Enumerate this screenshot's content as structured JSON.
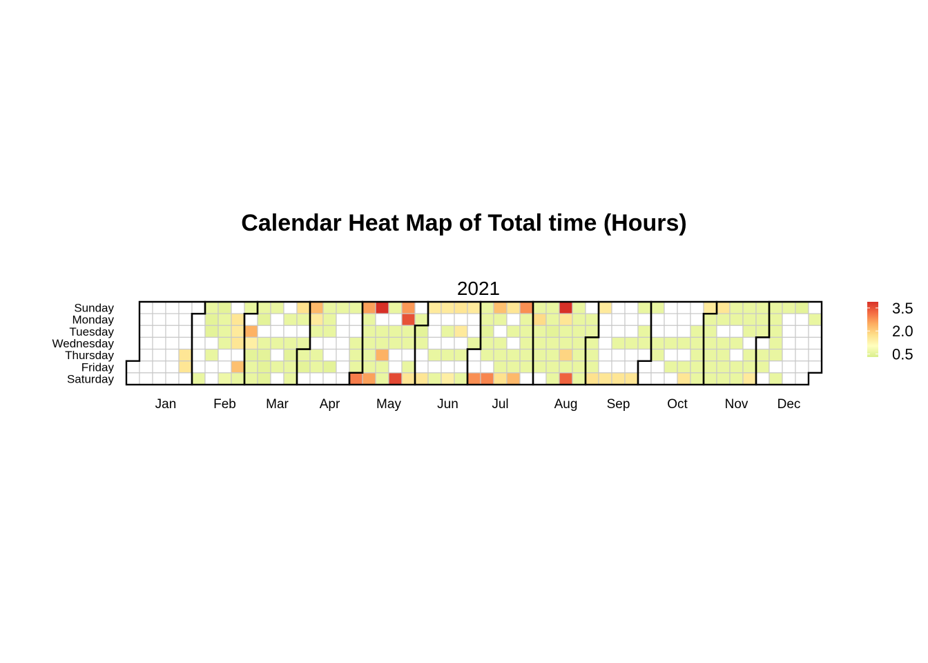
{
  "chart_data": {
    "type": "heatmap",
    "title": "Calendar Heat Map of Total time (Hours)",
    "panel_title": "2021",
    "year": 2021,
    "weekday_labels": [
      "Sunday",
      "Monday",
      "Tuesday",
      "Wednesday",
      "Thursday",
      "Friday",
      "Saturday"
    ],
    "month_labels": [
      "Jan",
      "Feb",
      "Mar",
      "Apr",
      "May",
      "Jun",
      "Jul",
      "Aug",
      "Sep",
      "Oct",
      "Nov",
      "Dec"
    ],
    "legend": {
      "ticks": [
        "3.5",
        "2.0",
        "0.5"
      ],
      "min": 0.3,
      "max": 3.9,
      "position": "right"
    },
    "color_scale": {
      "empty": "#ffffff",
      "stops": [
        "#d9ef8b",
        "#ffffbf",
        "#fee08b",
        "#fdae61",
        "#f46d43",
        "#d73027"
      ]
    },
    "values": {
      "2021-01-28": 1.6,
      "2021-01-29": 1.6,
      "2021-02-06": 0.6,
      "2021-02-07": 0.6,
      "2021-02-08": 0.5,
      "2021-02-09": 0.5,
      "2021-02-11": 0.6,
      "2021-02-14": 0.5,
      "2021-02-15": 0.6,
      "2021-02-16": 0.6,
      "2021-02-17": 0.6,
      "2021-02-20": 0.7,
      "2021-02-22": 1.6,
      "2021-02-23": 1.5,
      "2021-02-24": 1.6,
      "2021-02-26": 2.2,
      "2021-02-27": 0.6,
      "2021-02-28": 0.6,
      "2021-03-02": 2.4,
      "2021-03-03": 1.4,
      "2021-03-04": 0.5,
      "2021-03-05": 0.6,
      "2021-03-06": 0.6,
      "2021-03-07": 0.6,
      "2021-03-08": 0.5,
      "2021-03-10": 0.6,
      "2021-03-11": 0.5,
      "2021-03-12": 0.5,
      "2021-03-13": 0.5,
      "2021-03-14": 0.6,
      "2021-03-17": 0.6,
      "2021-03-19": 0.6,
      "2021-03-22": 0.6,
      "2021-03-24": 0.6,
      "2021-03-25": 0.5,
      "2021-03-26": 0.6,
      "2021-03-27": 0.6,
      "2021-03-28": 1.7,
      "2021-03-29": 0.6,
      "2021-03-31": 0.6,
      "2021-04-01": 0.6,
      "2021-04-02": 0.5,
      "2021-04-04": 2.3,
      "2021-04-05": 1.5,
      "2021-04-06": 0.6,
      "2021-04-08": 0.6,
      "2021-04-09": 0.6,
      "2021-04-11": 0.6,
      "2021-04-12": 0.6,
      "2021-04-13": 0.6,
      "2021-04-16": 0.5,
      "2021-04-18": 0.6,
      "2021-04-25": 0.6,
      "2021-04-28": 0.6,
      "2021-04-29": 0.6,
      "2021-04-30": 0.6,
      "2021-05-01": 3.0,
      "2021-05-02": 2.6,
      "2021-05-03": 0.6,
      "2021-05-04": 0.6,
      "2021-05-05": 0.6,
      "2021-05-06": 0.6,
      "2021-05-07": 0.6,
      "2021-05-08": 2.6,
      "2021-05-09": 3.9,
      "2021-05-11": 0.6,
      "2021-05-12": 0.6,
      "2021-05-13": 2.4,
      "2021-05-14": 0.6,
      "2021-05-15": 0.6,
      "2021-05-16": 0.6,
      "2021-05-18": 0.6,
      "2021-05-19": 0.6,
      "2021-05-22": 3.6,
      "2021-05-23": 2.7,
      "2021-05-24": 3.5,
      "2021-05-25": 0.6,
      "2021-05-26": 0.6,
      "2021-05-28": 0.6,
      "2021-05-29": 1.6,
      "2021-05-31": 0.6,
      "2021-06-01": 0.5,
      "2021-06-02": 0.6,
      "2021-06-05": 1.6,
      "2021-06-06": 1.5,
      "2021-06-10": 0.6,
      "2021-06-12": 0.6,
      "2021-06-13": 1.5,
      "2021-06-15": 0.6,
      "2021-06-17": 0.6,
      "2021-06-19": 1.4,
      "2021-06-20": 1.6,
      "2021-06-22": 1.5,
      "2021-06-24": 0.6,
      "2021-06-26": 0.6,
      "2021-06-27": 1.5,
      "2021-06-30": 0.6,
      "2021-07-03": 2.8,
      "2021-07-04": 0.6,
      "2021-07-05": 0.6,
      "2021-07-06": 0.5,
      "2021-07-07": 0.6,
      "2021-07-08": 0.6,
      "2021-07-10": 2.9,
      "2021-07-11": 2.2,
      "2021-07-12": 0.6,
      "2021-07-14": 0.6,
      "2021-07-15": 0.6,
      "2021-07-16": 0.6,
      "2021-07-17": 1.7,
      "2021-07-18": 1.6,
      "2021-07-20": 0.6,
      "2021-07-22": 0.6,
      "2021-07-23": 0.6,
      "2021-07-24": 2.3,
      "2021-07-25": 2.8,
      "2021-07-26": 0.6,
      "2021-07-27": 0.6,
      "2021-07-28": 0.6,
      "2021-07-29": 0.6,
      "2021-07-30": 0.6,
      "2021-08-01": 0.6,
      "2021-08-02": 1.8,
      "2021-08-03": 0.6,
      "2021-08-04": 0.6,
      "2021-08-05": 0.6,
      "2021-08-06": 0.6,
      "2021-08-08": 0.6,
      "2021-08-09": 0.6,
      "2021-08-10": 0.5,
      "2021-08-11": 0.6,
      "2021-08-12": 0.6,
      "2021-08-13": 0.6,
      "2021-08-14": 0.6,
      "2021-08-15": 3.9,
      "2021-08-16": 1.6,
      "2021-08-17": 0.6,
      "2021-08-18": 0.6,
      "2021-08-19": 1.9,
      "2021-08-20": 0.6,
      "2021-08-21": 3.3,
      "2021-08-22": 0.6,
      "2021-08-23": 0.6,
      "2021-08-24": 0.6,
      "2021-08-25": 0.6,
      "2021-08-26": 0.6,
      "2021-08-27": 0.6,
      "2021-08-28": 0.6,
      "2021-08-30": 0.6,
      "2021-08-31": 0.6,
      "2021-09-01": 0.6,
      "2021-09-02": 0.6,
      "2021-09-03": 0.6,
      "2021-09-04": 1.7,
      "2021-09-05": 1.5,
      "2021-09-11": 1.6,
      "2021-09-15": 0.6,
      "2021-09-18": 1.6,
      "2021-09-22": 0.6,
      "2021-09-25": 1.6,
      "2021-09-26": 0.6,
      "2021-09-28": 0.6,
      "2021-09-29": 0.6,
      "2021-10-03": 0.6,
      "2021-10-06": 0.6,
      "2021-10-07": 0.6,
      "2021-10-13": 0.6,
      "2021-10-15": 0.6,
      "2021-10-20": 0.6,
      "2021-10-22": 0.6,
      "2021-10-23": 1.6,
      "2021-10-26": 0.6,
      "2021-10-27": 0.6,
      "2021-10-28": 0.6,
      "2021-10-29": 0.6,
      "2021-10-30": 0.6,
      "2021-10-31": 1.5,
      "2021-11-01": 0.6,
      "2021-11-02": 0.6,
      "2021-11-03": 0.6,
      "2021-11-04": 0.6,
      "2021-11-05": 0.6,
      "2021-11-06": 0.6,
      "2021-11-07": 1.6,
      "2021-11-08": 0.6,
      "2021-11-10": 0.6,
      "2021-11-11": 0.6,
      "2021-11-12": 0.6,
      "2021-11-13": 0.6,
      "2021-11-14": 0.6,
      "2021-11-15": 0.6,
      "2021-11-17": 0.6,
      "2021-11-19": 0.6,
      "2021-11-20": 0.6,
      "2021-11-21": 0.6,
      "2021-11-22": 0.6,
      "2021-11-23": 0.6,
      "2021-11-25": 0.6,
      "2021-11-26": 0.6,
      "2021-11-27": 1.5,
      "2021-11-28": 0.6,
      "2021-11-29": 0.6,
      "2021-11-30": 0.6,
      "2021-12-02": 0.6,
      "2021-12-03": 0.6,
      "2021-12-05": 0.6,
      "2021-12-06": 0.6,
      "2021-12-07": 0.6,
      "2021-12-08": 0.6,
      "2021-12-09": 0.6,
      "2021-12-11": 0.6,
      "2021-12-12": 0.6,
      "2021-12-19": 0.5,
      "2021-12-27": 0.6
    }
  }
}
